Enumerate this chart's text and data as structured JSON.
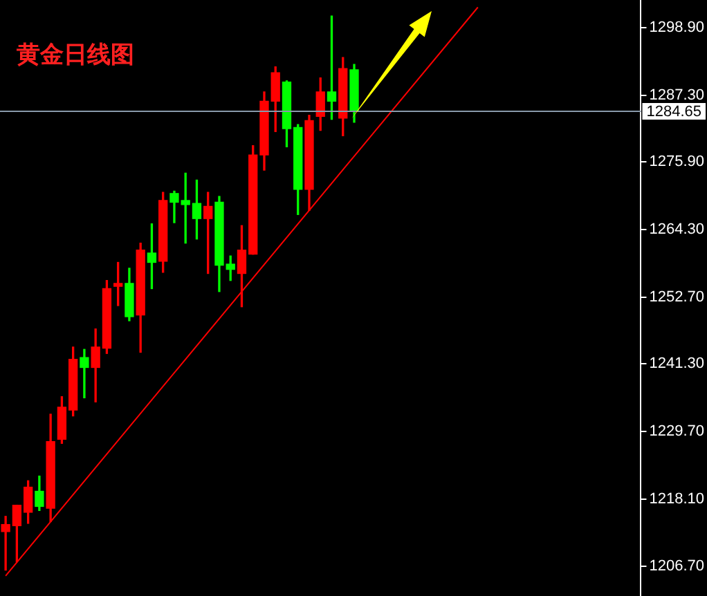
{
  "chart_data": {
    "type": "candlestick",
    "title": "黄金日线图",
    "categories": [
      null,
      null,
      null,
      null,
      null,
      null,
      null,
      null,
      null,
      null,
      null,
      null,
      null,
      null,
      null,
      null,
      null,
      null,
      null,
      null,
      null,
      null,
      null,
      null,
      null,
      null,
      null,
      null,
      null,
      null,
      null,
      null,
      null,
      null,
      null,
      null,
      null,
      null,
      null,
      null,
      null,
      null,
      null,
      null,
      null,
      null,
      null,
      null,
      null,
      null,
      null,
      null,
      null,
      null,
      null,
      null,
      null
    ],
    "ohlc": [
      [
        1212.6,
        1215.2,
        1206.0,
        1213.8
      ],
      [
        1213.6,
        1217.1,
        1207.4,
        1217.1
      ],
      [
        1215.9,
        1221.3,
        1214.0,
        1220.2
      ],
      [
        1219.5,
        1222.1,
        1216.2,
        1216.9
      ],
      [
        1216.6,
        1232.7,
        1214.3,
        1228.0
      ],
      [
        1228.4,
        1235.7,
        1227.7,
        1233.9
      ],
      [
        1233.4,
        1244.2,
        1232.4,
        1242.1
      ],
      [
        1242.4,
        1243.8,
        1235.5,
        1240.7
      ],
      [
        1240.7,
        1247.3,
        1234.8,
        1244.2
      ],
      [
        1244.0,
        1255.6,
        1243.1,
        1254.2
      ],
      [
        1254.6,
        1258.7,
        1251.3,
        1255.1
      ],
      [
        1255.1,
        1257.7,
        1248.7,
        1249.4
      ],
      [
        1249.7,
        1262.0,
        1243.3,
        1260.8
      ],
      [
        1260.3,
        1265.3,
        1254.2,
        1258.7
      ],
      [
        1258.9,
        1270.7,
        1257.0,
        1269.3
      ],
      [
        1270.5,
        1270.9,
        1265.5,
        1269.0
      ],
      [
        1269.3,
        1274.0,
        1262.0,
        1268.6
      ],
      [
        1268.8,
        1272.8,
        1262.7,
        1266.2
      ],
      [
        1266.2,
        1270.7,
        1256.8,
        1268.3
      ],
      [
        1269.0,
        1270.0,
        1253.7,
        1258.2
      ],
      [
        1258.4,
        1259.8,
        1255.6,
        1257.5
      ],
      [
        1256.8,
        1265.0,
        1251.1,
        1260.8
      ],
      [
        1260.1,
        1278.7,
        1260.1,
        1277.1
      ],
      [
        1277.1,
        1287.9,
        1274.5,
        1286.3
      ],
      [
        1286.3,
        1292.2,
        1281.1,
        1291.2
      ],
      [
        1289.6,
        1289.8,
        1278.5,
        1281.6
      ],
      [
        1281.8,
        1282.3,
        1266.9,
        1271.2
      ],
      [
        1271.2,
        1283.9,
        1267.6,
        1283.0
      ],
      [
        1283.7,
        1290.3,
        1281.3,
        1287.9
      ],
      [
        1287.9,
        1300.9,
        1283.2,
        1286.3
      ],
      [
        1283.4,
        1293.8,
        1280.4,
        1291.9
      ],
      [
        1291.7,
        1292.6,
        1282.7,
        1284.6
      ],
      null,
      null,
      null,
      null,
      null,
      null,
      null,
      null,
      null,
      null,
      null,
      null,
      null,
      null,
      null,
      null,
      null,
      null,
      null,
      null,
      null,
      null,
      null,
      null,
      null
    ],
    "colors": [
      "#ff0000",
      "#ff0000",
      "#ff0000",
      "#00ff00",
      "#ff0000",
      "#ff0000",
      "#ff0000",
      "#00ff00",
      "#ff0000",
      "#ff0000",
      "#ff0000",
      "#00ff00",
      "#ff0000",
      "#00ff00",
      "#ff0000",
      "#00ff00",
      "#00ff00",
      "#00ff00",
      "#ff0000",
      "#00ff00",
      "#00ff00",
      "#ff0000",
      "#ff0000",
      "#ff0000",
      "#ff0000",
      "#00ff00",
      "#00ff00",
      "#ff0000",
      "#ff0000",
      "#00ff00",
      "#ff0000",
      "#00ff00",
      null,
      null,
      null,
      null,
      null,
      null,
      null,
      null,
      null,
      null,
      null,
      null,
      null,
      null,
      null,
      null,
      null,
      null,
      null,
      null,
      null,
      null,
      null,
      null,
      null
    ],
    "series": [
      {
        "type": "line",
        "color": "#ff0000",
        "values": [
          1205.0,
          null,
          null,
          null,
          null,
          null,
          null,
          null,
          null,
          null,
          null,
          null,
          null,
          null,
          null,
          null,
          null,
          null,
          null,
          null,
          null,
          null,
          null,
          null,
          null,
          null,
          null,
          null,
          null,
          null,
          null,
          null,
          null,
          null,
          null,
          null,
          null,
          null,
          null,
          null,
          null,
          null,
          1302.4,
          null,
          null,
          null,
          null,
          null,
          null,
          null,
          null,
          null,
          null,
          null,
          null,
          null,
          null
        ]
      }
    ],
    "ylim": [
      1201.7,
      1303.5
    ],
    "yticks": [
      {
        "value": 1206.7,
        "label": "1206.70"
      },
      {
        "value": 1218.1,
        "label": "1218.10"
      },
      {
        "value": 1229.7,
        "label": "1229.70"
      },
      {
        "value": 1241.3,
        "label": "1241.30"
      },
      {
        "value": 1252.7,
        "label": "1252.70"
      },
      {
        "value": 1264.3,
        "label": "1264.30"
      },
      {
        "value": 1275.9,
        "label": "1275.90"
      },
      {
        "value": 1287.3,
        "label": "1287.30"
      },
      {
        "value": 1298.9,
        "label": "1298.90"
      }
    ],
    "ref_lines": [
      {
        "axis": "y",
        "value": 1284.65,
        "label": "1284.65",
        "color": "#8899aa"
      }
    ],
    "tick_labels": "y"
  }
}
